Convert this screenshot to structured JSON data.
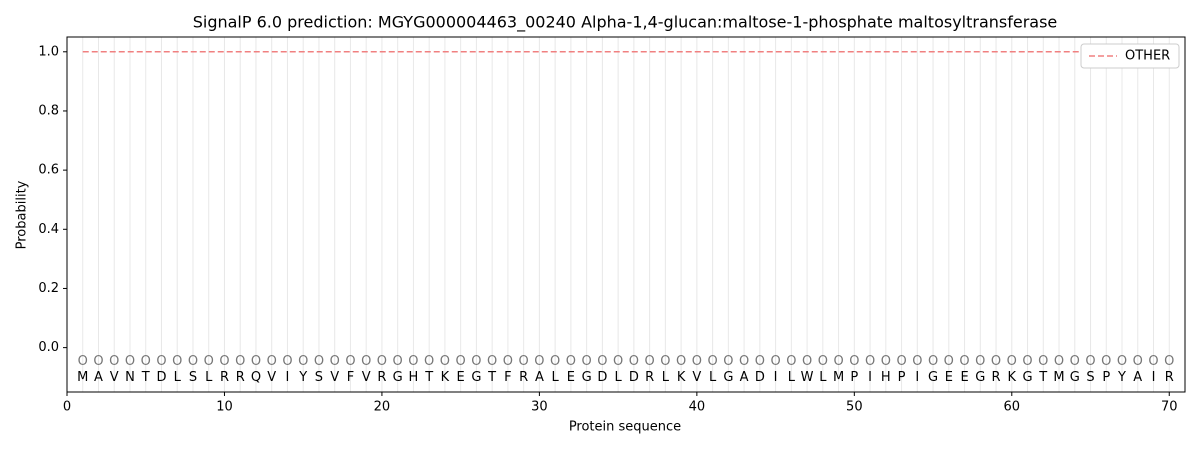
{
  "chart_data": {
    "type": "line",
    "title": "SignalP 6.0 prediction: MGYG000004463_00240 Alpha-1,4-glucan:maltose-1-phosphate maltosyltransferase",
    "xlabel": "Protein sequence",
    "ylabel": "Probability",
    "x": [
      1,
      2,
      3,
      4,
      5,
      6,
      7,
      8,
      9,
      10,
      11,
      12,
      13,
      14,
      15,
      16,
      17,
      18,
      19,
      20,
      21,
      22,
      23,
      24,
      25,
      26,
      27,
      28,
      29,
      30,
      31,
      32,
      33,
      34,
      35,
      36,
      37,
      38,
      39,
      40,
      41,
      42,
      43,
      44,
      45,
      46,
      47,
      48,
      49,
      50,
      51,
      52,
      53,
      54,
      55,
      56,
      57,
      58,
      59,
      60,
      61,
      62,
      63,
      64,
      65,
      66,
      67,
      68,
      69,
      70
    ],
    "sequence": [
      "M",
      "A",
      "V",
      "N",
      "T",
      "D",
      "L",
      "S",
      "L",
      "R",
      "R",
      "Q",
      "V",
      "I",
      "Y",
      "S",
      "V",
      "F",
      "V",
      "R",
      "G",
      "H",
      "T",
      "K",
      "E",
      "G",
      "T",
      "F",
      "R",
      "A",
      "L",
      "E",
      "G",
      "D",
      "L",
      "D",
      "R",
      "L",
      "K",
      "V",
      "L",
      "G",
      "A",
      "D",
      "I",
      "L",
      "W",
      "L",
      "M",
      "P",
      "I",
      "H",
      "P",
      "I",
      "G",
      "E",
      "E",
      "G",
      "R",
      "K",
      "G",
      "T",
      "M",
      "G",
      "S",
      "P",
      "Y",
      "A",
      "I",
      "R"
    ],
    "labels": [
      "O",
      "O",
      "O",
      "O",
      "O",
      "O",
      "O",
      "O",
      "O",
      "O",
      "O",
      "O",
      "O",
      "O",
      "O",
      "O",
      "O",
      "O",
      "O",
      "O",
      "O",
      "O",
      "O",
      "O",
      "O",
      "O",
      "O",
      "O",
      "O",
      "O",
      "O",
      "O",
      "O",
      "O",
      "O",
      "O",
      "O",
      "O",
      "O",
      "O",
      "O",
      "O",
      "O",
      "O",
      "O",
      "O",
      "O",
      "O",
      "O",
      "O",
      "O",
      "O",
      "O",
      "O",
      "O",
      "O",
      "O",
      "O",
      "O",
      "O",
      "O",
      "O",
      "O",
      "O",
      "O",
      "O",
      "O",
      "O",
      "O",
      "O"
    ],
    "series": [
      {
        "name": "OTHER",
        "color": "#f08080",
        "dash": true,
        "values": [
          1,
          1,
          1,
          1,
          1,
          1,
          1,
          1,
          1,
          1,
          1,
          1,
          1,
          1,
          1,
          1,
          1,
          1,
          1,
          1,
          1,
          1,
          1,
          1,
          1,
          1,
          1,
          1,
          1,
          1,
          1,
          1,
          1,
          1,
          1,
          1,
          1,
          1,
          1,
          1,
          1,
          1,
          1,
          1,
          1,
          1,
          1,
          1,
          1,
          1,
          1,
          1,
          1,
          1,
          1,
          1,
          1,
          1,
          1,
          1,
          1,
          1,
          1,
          1,
          1,
          1,
          1,
          1,
          1,
          1
        ]
      }
    ],
    "xlim": [
      0,
      71
    ],
    "ylim": [
      -0.15,
      1.05
    ],
    "xticks": [
      0,
      10,
      20,
      30,
      40,
      50,
      60,
      70
    ],
    "yticks": [
      {
        "value": 0,
        "label": "0.0"
      },
      {
        "value": 0.2,
        "label": "0.2"
      },
      {
        "value": 0.4,
        "label": "0.4"
      },
      {
        "value": 0.6,
        "label": "0.6"
      },
      {
        "value": 0.8,
        "label": "0.8"
      },
      {
        "value": 1,
        "label": "1.0"
      }
    ],
    "legend": "upper right"
  }
}
